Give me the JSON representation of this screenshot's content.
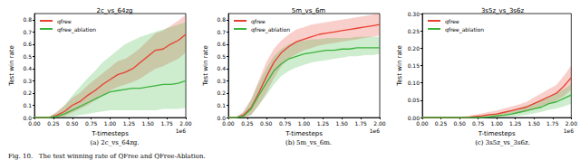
{
  "caption": "Fig. 10.   The test winning rate of QFree and QFree-Ablation.",
  "chart_data": [
    {
      "type": "line",
      "title": "2c_vs_64zg",
      "subtitle": "(a) 2c_vs_64zg.",
      "x_label": "T-timesteps",
      "x_multiplier": "1e6",
      "y_label": "Test win rate",
      "legend": "upper left",
      "grid": false,
      "x": [
        0,
        0.1,
        0.2,
        0.3,
        0.4,
        0.5,
        0.6,
        0.7,
        0.8,
        0.9,
        1.0,
        1.1,
        1.2,
        1.3,
        1.4,
        1.5,
        1.6,
        1.7,
        1.8,
        1.9,
        2.0
      ],
      "xlim": [
        0,
        2
      ],
      "xticks": [
        {
          "value": 0,
          "label": "0.00"
        },
        {
          "value": 0.25,
          "label": "0.25"
        },
        {
          "value": 0.5,
          "label": "0.50"
        },
        {
          "value": 0.75,
          "label": "0.75"
        },
        {
          "value": 1,
          "label": "1.00"
        },
        {
          "value": 1.25,
          "label": "1.25"
        },
        {
          "value": 1.5,
          "label": "1.50"
        },
        {
          "value": 1.75,
          "label": "1.75"
        },
        {
          "value": 2,
          "label": "2.00"
        }
      ],
      "ylim": [
        0,
        0.85
      ],
      "yticks": [
        {
          "value": 0,
          "label": "0.0"
        },
        0.1,
        0.2,
        0.3,
        0.4,
        0.5,
        0.6,
        0.7,
        0.8
      ],
      "series": [
        {
          "name": "qfree",
          "color": "#e8402f",
          "values": [
            0,
            0,
            0,
            0.02,
            0.05,
            0.1,
            0.13,
            0.18,
            0.22,
            0.27,
            0.31,
            0.35,
            0.37,
            0.4,
            0.45,
            0.5,
            0.55,
            0.56,
            0.6,
            0.63,
            0.68
          ],
          "lower": [
            0,
            0,
            0,
            0,
            0.01,
            0.04,
            0.07,
            0.1,
            0.14,
            0.18,
            0.22,
            0.25,
            0.27,
            0.29,
            0.32,
            0.36,
            0.4,
            0.42,
            0.45,
            0.48,
            0.53
          ],
          "upper": [
            0,
            0,
            0.01,
            0.05,
            0.1,
            0.16,
            0.2,
            0.26,
            0.31,
            0.36,
            0.41,
            0.46,
            0.48,
            0.52,
            0.57,
            0.63,
            0.69,
            0.71,
            0.75,
            0.79,
            0.84
          ]
        },
        {
          "name": "qfree_ablation",
          "color": "#3cb43c",
          "values": [
            0,
            0,
            0,
            0.01,
            0.03,
            0.06,
            0.09,
            0.12,
            0.15,
            0.18,
            0.21,
            0.22,
            0.23,
            0.24,
            0.24,
            0.25,
            0.26,
            0.27,
            0.27,
            0.28,
            0.3
          ],
          "lower": [
            0,
            0,
            0,
            0,
            0,
            0.01,
            0.02,
            0.03,
            0.04,
            0.05,
            0.06,
            0.06,
            0.06,
            0.06,
            0.06,
            0.06,
            0.06,
            0.07,
            0.07,
            0.07,
            0.08
          ],
          "upper": [
            0,
            0,
            0.01,
            0.04,
            0.1,
            0.18,
            0.25,
            0.32,
            0.38,
            0.45,
            0.5,
            0.55,
            0.6,
            0.63,
            0.66,
            0.68,
            0.7,
            0.72,
            0.74,
            0.76,
            0.78
          ]
        }
      ]
    },
    {
      "type": "line",
      "title": "5m_vs_6m",
      "subtitle": "(b) 5m_vs_6m.",
      "x_label": "T-timesteps",
      "x_multiplier": "1e6",
      "y_label": "Test win rate",
      "legend": "upper left",
      "grid": false,
      "x": [
        0,
        0.1,
        0.2,
        0.3,
        0.4,
        0.5,
        0.6,
        0.7,
        0.8,
        0.9,
        1.0,
        1.1,
        1.2,
        1.3,
        1.4,
        1.5,
        1.6,
        1.7,
        1.8,
        1.9,
        2.0
      ],
      "xlim": [
        0,
        2
      ],
      "xticks": [
        {
          "value": 0,
          "label": "0.00"
        },
        {
          "value": 0.25,
          "label": "0.25"
        },
        {
          "value": 0.5,
          "label": "0.50"
        },
        {
          "value": 0.75,
          "label": "0.75"
        },
        {
          "value": 1,
          "label": "1.00"
        },
        {
          "value": 1.25,
          "label": "1.25"
        },
        {
          "value": 1.5,
          "label": "1.50"
        },
        {
          "value": 1.75,
          "label": "1.75"
        },
        {
          "value": 2,
          "label": "2.00"
        }
      ],
      "ylim": [
        0,
        0.85
      ],
      "yticks": [
        {
          "value": 0,
          "label": "0.0"
        },
        0.1,
        0.2,
        0.3,
        0.4,
        0.5,
        0.6,
        0.7,
        0.8
      ],
      "series": [
        {
          "name": "qfree",
          "color": "#e8402f",
          "values": [
            0,
            0,
            0.02,
            0.08,
            0.2,
            0.33,
            0.45,
            0.53,
            0.58,
            0.62,
            0.64,
            0.66,
            0.68,
            0.69,
            0.7,
            0.71,
            0.72,
            0.73,
            0.74,
            0.75,
            0.76
          ],
          "lower": [
            0,
            0,
            0,
            0.02,
            0.1,
            0.2,
            0.32,
            0.42,
            0.48,
            0.52,
            0.55,
            0.57,
            0.59,
            0.6,
            0.61,
            0.62,
            0.63,
            0.64,
            0.65,
            0.66,
            0.67
          ],
          "upper": [
            0,
            0,
            0.05,
            0.15,
            0.3,
            0.45,
            0.56,
            0.63,
            0.68,
            0.72,
            0.74,
            0.76,
            0.77,
            0.78,
            0.79,
            0.8,
            0.81,
            0.82,
            0.83,
            0.84,
            0.85
          ]
        },
        {
          "name": "qfree_ablation",
          "color": "#3cb43c",
          "values": [
            0,
            0,
            0.01,
            0.07,
            0.18,
            0.28,
            0.38,
            0.44,
            0.48,
            0.5,
            0.52,
            0.53,
            0.54,
            0.55,
            0.55,
            0.56,
            0.56,
            0.57,
            0.57,
            0.57,
            0.57
          ],
          "lower": [
            0,
            0,
            0,
            0.02,
            0.1,
            0.18,
            0.27,
            0.34,
            0.38,
            0.41,
            0.43,
            0.45,
            0.46,
            0.47,
            0.48,
            0.49,
            0.5,
            0.5,
            0.51,
            0.51,
            0.52
          ],
          "upper": [
            0,
            0,
            0.04,
            0.14,
            0.28,
            0.4,
            0.5,
            0.56,
            0.6,
            0.62,
            0.63,
            0.64,
            0.64,
            0.65,
            0.65,
            0.65,
            0.65,
            0.66,
            0.66,
            0.66,
            0.66
          ]
        }
      ]
    },
    {
      "type": "line",
      "title": "3s5z_vs_3s6z",
      "subtitle": "(c) 3s5z_vs_3s6z.",
      "x_label": "T-timesteps",
      "x_multiplier": "1e6",
      "y_label": "Test win rate",
      "legend": "upper left",
      "grid": false,
      "x": [
        0,
        0.1,
        0.2,
        0.3,
        0.4,
        0.5,
        0.6,
        0.7,
        0.8,
        0.9,
        1.0,
        1.1,
        1.2,
        1.3,
        1.4,
        1.5,
        1.6,
        1.7,
        1.8,
        1.9,
        2.0
      ],
      "xlim": [
        0,
        2
      ],
      "xticks": [
        {
          "value": 0,
          "label": "0.00"
        },
        {
          "value": 0.25,
          "label": "0.25"
        },
        {
          "value": 0.5,
          "label": "0.50"
        },
        {
          "value": 0.75,
          "label": "0.75"
        },
        {
          "value": 1,
          "label": "1.00"
        },
        {
          "value": 1.25,
          "label": "1.25"
        },
        {
          "value": 1.5,
          "label": "1.50"
        },
        {
          "value": 1.75,
          "label": "1.75"
        },
        {
          "value": 2,
          "label": "2.00"
        }
      ],
      "ylim": [
        0,
        0.3
      ],
      "yticks": [
        {
          "value": 0,
          "label": "0.00"
        },
        0.05,
        {
          "value": 0.1,
          "label": "0.10"
        },
        0.15,
        {
          "value": 0.2,
          "label": "0.20"
        },
        0.25,
        {
          "value": 0.3,
          "label": "0.30"
        }
      ],
      "series": [
        {
          "name": "qfree",
          "color": "#e8402f",
          "values": [
            0,
            0,
            0,
            0,
            0,
            0,
            0,
            0.003,
            0.005,
            0.008,
            0.01,
            0.015,
            0.02,
            0.025,
            0.03,
            0.04,
            0.05,
            0.06,
            0.07,
            0.09,
            0.115
          ],
          "lower": [
            0,
            0,
            0,
            0,
            0,
            0,
            0,
            0,
            0,
            0.002,
            0.003,
            0.006,
            0.01,
            0.013,
            0.017,
            0.024,
            0.032,
            0.04,
            0.048,
            0.062,
            0.08
          ],
          "upper": [
            0,
            0,
            0,
            0,
            0,
            0.002,
            0.004,
            0.008,
            0.012,
            0.016,
            0.02,
            0.026,
            0.032,
            0.038,
            0.045,
            0.058,
            0.07,
            0.082,
            0.094,
            0.12,
            0.15
          ]
        },
        {
          "name": "qfree_ablation",
          "color": "#3cb43c",
          "values": [
            0,
            0,
            0,
            0,
            0,
            0,
            0,
            0,
            0,
            0.002,
            0.005,
            0.007,
            0.01,
            0.015,
            0.02,
            0.025,
            0.03,
            0.04,
            0.045,
            0.055,
            0.065
          ],
          "lower": [
            0,
            0,
            0,
            0,
            0,
            0,
            0,
            0,
            0,
            0,
            0,
            0.001,
            0.003,
            0.005,
            0.008,
            0.012,
            0.016,
            0.022,
            0.026,
            0.032,
            0.04
          ],
          "upper": [
            0,
            0,
            0,
            0,
            0,
            0,
            0,
            0.002,
            0.004,
            0.007,
            0.012,
            0.016,
            0.02,
            0.028,
            0.035,
            0.042,
            0.05,
            0.062,
            0.07,
            0.082,
            0.095
          ]
        }
      ]
    }
  ]
}
